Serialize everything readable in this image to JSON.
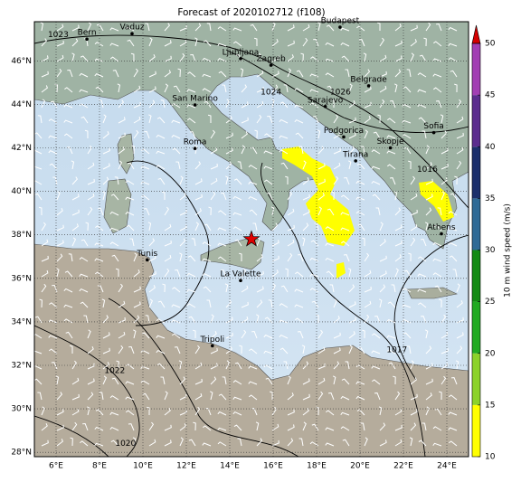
{
  "title": "Forecast of 2020102712 (f108)",
  "map": {
    "xlim": [
      5,
      25
    ],
    "ylim": [
      27.8,
      47.8
    ],
    "grid": true,
    "xticks": [
      {
        "value": 6,
        "label": "6°E"
      },
      {
        "value": 8,
        "label": "8°E"
      },
      {
        "value": 10,
        "label": "10°E"
      },
      {
        "value": 12,
        "label": "12°E"
      },
      {
        "value": 14,
        "label": "14°E"
      },
      {
        "value": 16,
        "label": "16°E"
      },
      {
        "value": 18,
        "label": "18°E"
      },
      {
        "value": 20,
        "label": "20°E"
      },
      {
        "value": 22,
        "label": "22°E"
      },
      {
        "value": 24,
        "label": "24°E"
      }
    ],
    "yticks": [
      {
        "value": 28,
        "label": "28°N"
      },
      {
        "value": 30,
        "label": "30°N"
      },
      {
        "value": 32,
        "label": "32°N"
      },
      {
        "value": 34,
        "label": "34°N"
      },
      {
        "value": 36,
        "label": "36°N"
      },
      {
        "value": 38,
        "label": "38°N"
      },
      {
        "value": 40,
        "label": "40°N"
      },
      {
        "value": 42,
        "label": "42°N"
      },
      {
        "value": 44,
        "label": "44°N"
      },
      {
        "value": 46,
        "label": "46°N"
      }
    ]
  },
  "colorbar": {
    "label": "10 m wind speed (m/s)",
    "lim": [
      10,
      50
    ],
    "ticks": [
      10,
      15,
      20,
      25,
      30,
      35,
      40,
      45,
      50
    ],
    "colors": [
      "#ffff00",
      "#8cd22a",
      "#22aa22",
      "#138a13",
      "#2f6a96",
      "#1c2f6b",
      "#5b2d8e",
      "#a23fb3"
    ],
    "extend_color": "#d40000"
  },
  "cities": [
    {
      "name": "Bern",
      "lon": 7.42,
      "lat": 47.0
    },
    {
      "name": "Vaduz",
      "lon": 9.5,
      "lat": 47.25
    },
    {
      "name": "Budapest",
      "lon": 19.08,
      "lat": 47.55
    },
    {
      "name": "Ljubljana",
      "lon": 14.5,
      "lat": 46.1
    },
    {
      "name": "Zagreb",
      "lon": 15.9,
      "lat": 45.8
    },
    {
      "name": "Belgrade",
      "lon": 20.4,
      "lat": 44.85
    },
    {
      "name": "San Marino",
      "lon": 12.4,
      "lat": 43.97
    },
    {
      "name": "Sarajevo",
      "lon": 18.4,
      "lat": 43.9
    },
    {
      "name": "Sofia",
      "lon": 23.4,
      "lat": 42.7
    },
    {
      "name": "Podgorica",
      "lon": 19.25,
      "lat": 42.5
    },
    {
      "name": "Skopje",
      "lon": 21.4,
      "lat": 42.0
    },
    {
      "name": "Roma",
      "lon": 12.4,
      "lat": 41.97
    },
    {
      "name": "Tirana",
      "lon": 19.8,
      "lat": 41.4
    },
    {
      "name": "Athens",
      "lon": 23.75,
      "lat": 38.05
    },
    {
      "name": "Tunis",
      "lon": 10.2,
      "lat": 36.85
    },
    {
      "name": "La Valette",
      "lon": 14.5,
      "lat": 35.9
    },
    {
      "name": "Tripoli",
      "lon": 13.2,
      "lat": 32.9
    }
  ],
  "isobars": [
    {
      "value": 1023,
      "lon": 6.1,
      "lat": 47.2
    },
    {
      "value": 1024,
      "lon": 15.9,
      "lat": 44.55
    },
    {
      "value": 1026,
      "lon": 19.1,
      "lat": 44.55
    },
    {
      "value": 1016,
      "lon": 23.1,
      "lat": 41.0
    },
    {
      "value": 1022,
      "lon": 8.7,
      "lat": 31.76
    },
    {
      "value": 1020,
      "lon": 9.2,
      "lat": 28.4
    },
    {
      "value": 1017,
      "lon": 21.7,
      "lat": 32.7
    }
  ],
  "marker": {
    "lon": 15.0,
    "lat": 37.8,
    "color": "#e00000"
  }
}
